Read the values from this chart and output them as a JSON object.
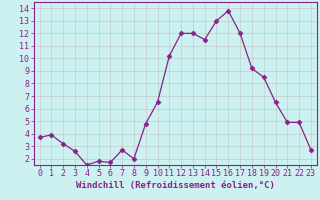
{
  "x": [
    0,
    1,
    2,
    3,
    4,
    5,
    6,
    7,
    8,
    9,
    10,
    11,
    12,
    13,
    14,
    15,
    16,
    17,
    18,
    19,
    20,
    21,
    22,
    23
  ],
  "y": [
    3.7,
    3.9,
    3.2,
    2.6,
    1.5,
    1.8,
    1.7,
    2.7,
    2.0,
    4.8,
    6.5,
    10.2,
    12.0,
    12.0,
    11.5,
    13.0,
    13.8,
    12.0,
    9.2,
    8.5,
    6.5,
    4.9,
    4.9,
    2.7
  ],
  "line_color": "#882288",
  "marker": "D",
  "marker_size": 2.5,
  "bg_color": "#cdf0f0",
  "grid_color": "#bbbbbb",
  "xlabel": "Windchill (Refroidissement éolien,°C)",
  "ylabel": "",
  "title": "",
  "xlim": [
    -0.5,
    23.5
  ],
  "ylim": [
    1.5,
    14.5
  ],
  "xticks": [
    0,
    1,
    2,
    3,
    4,
    5,
    6,
    7,
    8,
    9,
    10,
    11,
    12,
    13,
    14,
    15,
    16,
    17,
    18,
    19,
    20,
    21,
    22,
    23
  ],
  "yticks": [
    2,
    3,
    4,
    5,
    6,
    7,
    8,
    9,
    10,
    11,
    12,
    13,
    14
  ],
  "xlabel_fontsize": 6.5,
  "tick_fontsize": 6.0
}
